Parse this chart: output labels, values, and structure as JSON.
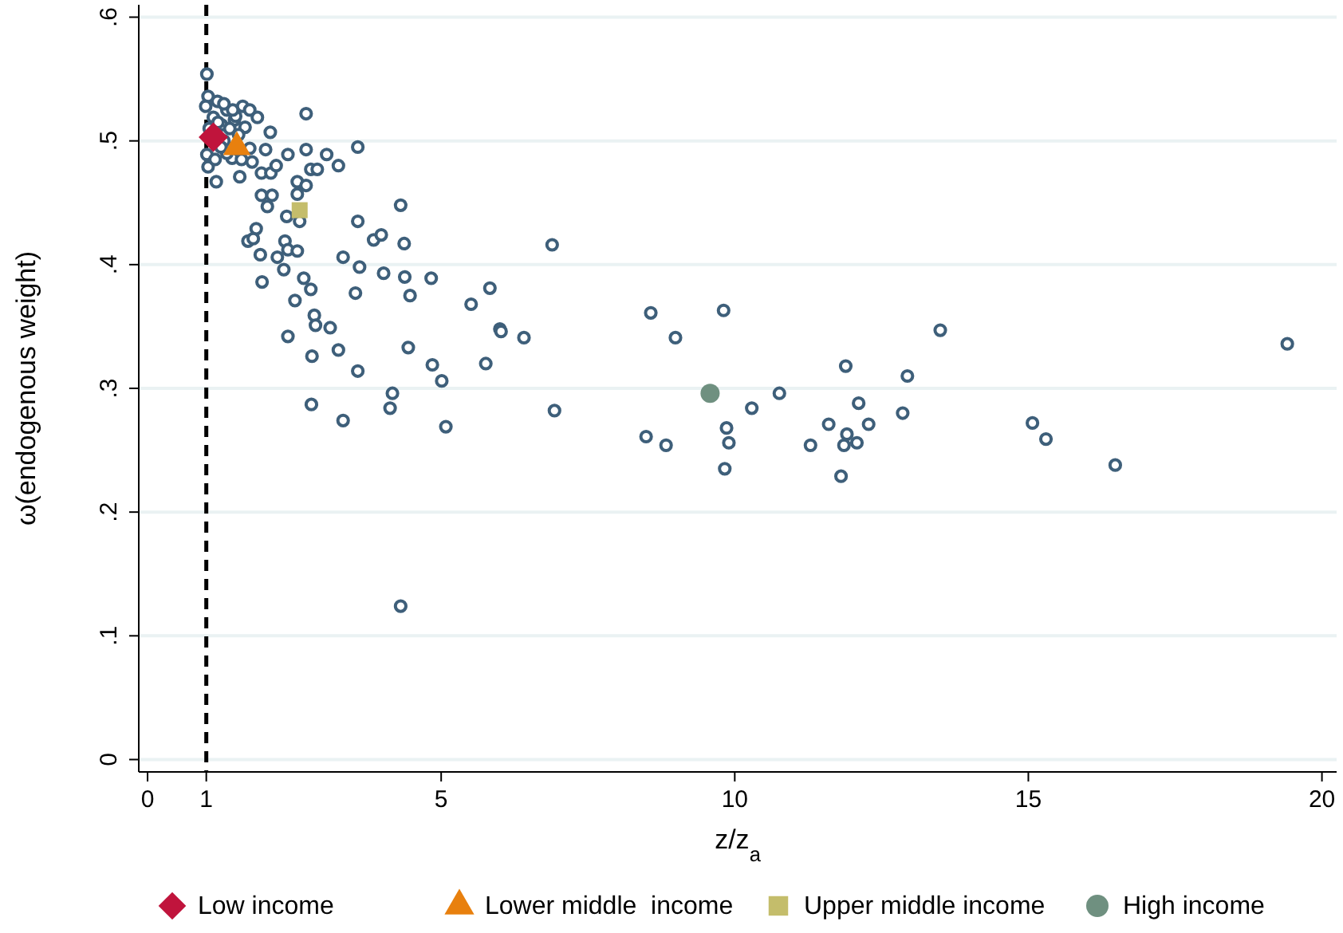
{
  "chart_data": {
    "type": "scatter",
    "xlabel": "z/z$_{a}$",
    "ylabel": "ω(endogenous weight)",
    "xlim": [
      -0.15,
      20.25
    ],
    "ylim": [
      -0.01,
      0.61
    ],
    "xticks": [
      0,
      1,
      5,
      10,
      15,
      20
    ],
    "yticks": [
      {
        "value": 0,
        "label": "0"
      },
      {
        "value": 0.1,
        "label": ".1"
      },
      {
        "value": 0.2,
        "label": ".2"
      },
      {
        "value": 0.3,
        "label": ".3"
      },
      {
        "value": 0.4,
        "label": ".4"
      },
      {
        "value": 0.5,
        "label": ".5"
      },
      {
        "value": 0.6,
        "label": ".6"
      }
    ],
    "grid": "y",
    "legend": "bottom",
    "ref_lines": [
      {
        "axis": "x",
        "value": 1,
        "color": "#000000",
        "line_style": "dashed"
      }
    ],
    "series": [
      {
        "color": "#3e5f7a",
        "marker": "circle",
        "x": [
          1.01,
          1.03,
          1.19,
          0.99,
          1.35,
          1.62,
          1.74,
          1.87,
          1.12,
          1.48,
          1.66,
          1.26,
          2.09,
          2.7,
          1.01,
          1.03,
          1.17,
          1.57,
          1.44,
          1.74,
          1.78,
          2.01,
          2.39,
          2.7,
          3.05,
          3.25,
          3.58,
          1.94,
          2.1,
          2.19,
          2.55,
          2.7,
          2.78,
          2.89,
          1.94,
          2.12,
          2.04,
          2.55,
          2.59,
          2.37,
          4.31,
          3.58,
          3.85,
          3.98,
          4.37,
          6.89,
          1.85,
          1.71,
          1.8,
          2.34,
          2.39,
          2.55,
          2.21,
          1.92,
          2.32,
          3.33,
          3.61,
          4.02,
          4.38,
          4.83,
          4.47,
          3.54,
          1.95,
          2.66,
          2.78,
          2.51,
          5.51,
          5.83,
          6.0,
          6.02,
          6.41,
          2.84,
          2.86,
          3.11,
          2.39,
          3.25,
          2.8,
          4.44,
          4.85,
          5.01,
          5.76,
          3.58,
          4.17,
          4.13,
          2.79,
          3.33,
          5.08,
          6.93,
          4.31,
          8.57,
          9.81,
          8.99,
          8.49,
          8.83,
          9.86,
          9.9,
          9.83,
          10.29,
          13.5,
          11.89,
          12.94,
          19.41,
          10.76,
          12.11,
          12.86,
          11.6,
          12.28,
          11.91,
          11.86,
          12.08,
          11.29,
          11.81,
          15.07,
          15.3,
          16.48,
          1.05,
          1.2,
          1.3,
          1.35,
          1.4,
          1.5,
          1.55,
          1.25,
          1.15,
          1.6,
          1.45,
          1.3
        ],
        "values": [
          0.554,
          0.536,
          0.532,
          0.528,
          0.525,
          0.528,
          0.525,
          0.519,
          0.519,
          0.517,
          0.511,
          0.513,
          0.507,
          0.522,
          0.489,
          0.479,
          0.467,
          0.471,
          0.486,
          0.494,
          0.483,
          0.493,
          0.489,
          0.493,
          0.489,
          0.48,
          0.495,
          0.474,
          0.474,
          0.48,
          0.467,
          0.464,
          0.477,
          0.477,
          0.456,
          0.456,
          0.447,
          0.457,
          0.435,
          0.439,
          0.448,
          0.435,
          0.42,
          0.424,
          0.417,
          0.416,
          0.429,
          0.419,
          0.421,
          0.419,
          0.412,
          0.411,
          0.406,
          0.408,
          0.396,
          0.406,
          0.398,
          0.393,
          0.39,
          0.389,
          0.375,
          0.377,
          0.386,
          0.389,
          0.38,
          0.371,
          0.368,
          0.381,
          0.348,
          0.346,
          0.341,
          0.359,
          0.351,
          0.349,
          0.342,
          0.331,
          0.326,
          0.333,
          0.319,
          0.306,
          0.32,
          0.314,
          0.296,
          0.284,
          0.287,
          0.274,
          0.269,
          0.282,
          0.124,
          0.361,
          0.363,
          0.341,
          0.261,
          0.254,
          0.268,
          0.256,
          0.235,
          0.284,
          0.347,
          0.318,
          0.31,
          0.336,
          0.296,
          0.288,
          0.28,
          0.271,
          0.271,
          0.263,
          0.254,
          0.256,
          0.254,
          0.229,
          0.272,
          0.259,
          0.238,
          0.51,
          0.515,
          0.5,
          0.49,
          0.51,
          0.52,
          0.505,
          0.495,
          0.485,
          0.485,
          0.525,
          0.53
        ]
      },
      {
        "name": "Low income",
        "color": "#c0143c",
        "marker": "diamond",
        "x": [
          1.12
        ],
        "values": [
          0.503
        ]
      },
      {
        "name": "Lower middle  income",
        "color": "#e8800e",
        "marker": "triangle",
        "x": [
          1.52
        ],
        "values": [
          0.495
        ]
      },
      {
        "name": "Upper middle income",
        "color": "#c4bd6b",
        "marker": "square",
        "x": [
          2.59
        ],
        "values": [
          0.444
        ]
      },
      {
        "name": "High income",
        "color": "#6f9080",
        "marker": "circle",
        "x": [
          9.58
        ],
        "values": [
          0.296
        ]
      }
    ]
  }
}
